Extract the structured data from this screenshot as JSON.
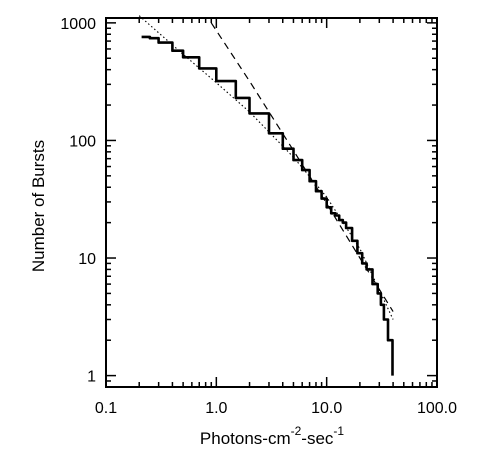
{
  "chart_data": {
    "type": "line",
    "title": "",
    "xlabel": {
      "base": "Photons-cm",
      "sup1": "-2",
      "mid": "-sec",
      "sup2": "-1"
    },
    "ylabel": "Number of Bursts",
    "xscale": "log",
    "yscale": "log",
    "xlim": [
      0.1,
      100.0
    ],
    "ylim": [
      0.8,
      1100
    ],
    "x_tick_labels": [
      "0.1",
      "1.0",
      "10.0",
      "100.0"
    ],
    "y_tick_labels": [
      "1",
      "10",
      "100",
      "1000"
    ],
    "grid": false,
    "legend": "none",
    "series": [
      {
        "style": "solid-step",
        "x": [
          0.21,
          0.25,
          0.3,
          0.4,
          0.5,
          0.7,
          1.0,
          1.5,
          2.0,
          3.0,
          4.0,
          5.0,
          6.0,
          7.0,
          8.0,
          9.0,
          10.0,
          11.0,
          12.0,
          13.0,
          14.0,
          15.0,
          17.0,
          19.0,
          21.0,
          23.0,
          26.0,
          29.0,
          31.0,
          33.0,
          36.0,
          39.0,
          39.5
        ],
        "y": [
          760,
          740,
          680,
          580,
          510,
          410,
          320,
          230,
          170,
          115,
          85,
          68,
          56,
          45,
          37,
          32,
          27,
          24,
          23,
          21,
          20,
          18,
          14,
          11,
          9,
          8,
          6,
          5,
          4,
          3,
          2,
          2,
          1
        ]
      },
      {
        "style": "dotted",
        "x": [
          0.2,
          0.5,
          1.0,
          2.0,
          5.0,
          10.0,
          20.0,
          40.0
        ],
        "y": [
          1150,
          540,
          310,
          175,
          72,
          33,
          12,
          3
        ]
      },
      {
        "style": "dashed",
        "x": [
          0.9,
          2.0,
          5.0,
          10.0,
          20.0,
          40.0
        ],
        "y": [
          1000,
          320,
          82,
          29,
          10,
          3.5
        ]
      }
    ]
  }
}
